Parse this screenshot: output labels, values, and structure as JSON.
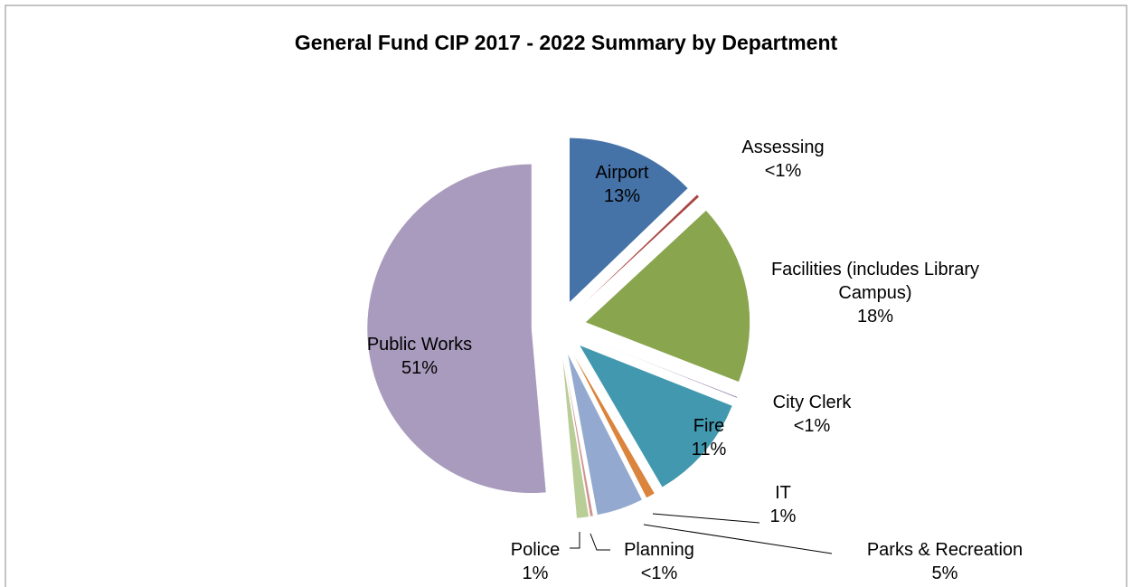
{
  "chart_data": {
    "type": "pie",
    "title": "General Fund CIP 2017 - 2022 Summary by Department",
    "categories": [
      "Airport",
      "Assessing",
      "Facilities (includes Library Campus)",
      "City Clerk",
      "Fire",
      "IT",
      "Parks & Recreation",
      "Planning",
      "Police",
      "Public Works"
    ],
    "values": [
      12.8,
      0.3,
      17.8,
      0.1,
      10.6,
      0.9,
      4.6,
      0.3,
      1.2,
      51.4
    ],
    "value_labels": [
      "13%",
      "<1%",
      "18%",
      "<1%",
      "11%",
      "1%",
      "5%",
      "<1%",
      "1%",
      "51%"
    ],
    "colors": [
      "#4572a7",
      "#aa4643",
      "#89a54e",
      "#71588f",
      "#4198af",
      "#db843d",
      "#93a9cf",
      "#d19392",
      "#b9cd96",
      "#a99bbd"
    ]
  }
}
